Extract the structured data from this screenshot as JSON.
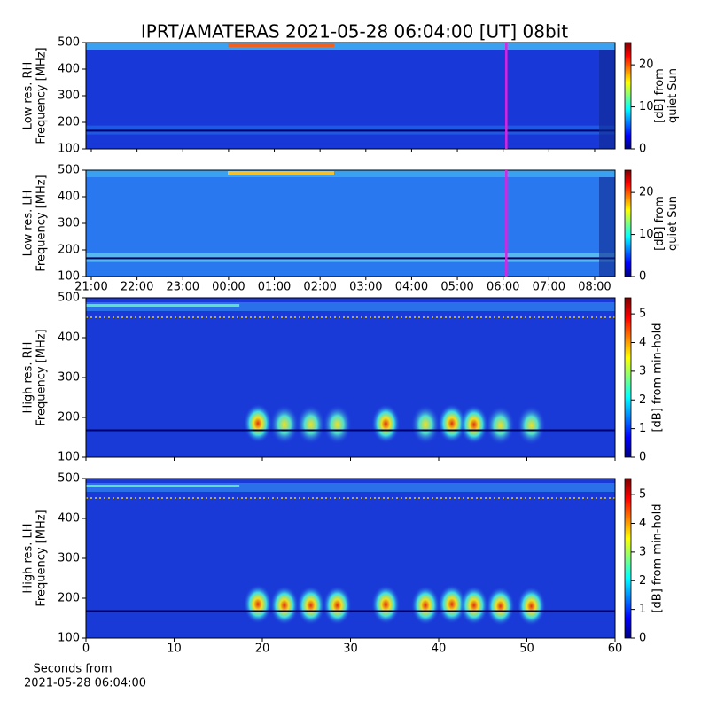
{
  "title": "IPRT/AMATERAS 2021-05-28 06:04:00 [UT]   08bit",
  "chart_data": [
    {
      "type": "heatmap",
      "ylabel": [
        "Low res. RH",
        "Frequency [MHz]"
      ],
      "xlim": [
        20.884,
        32.446
      ],
      "ylim": [
        100,
        500
      ],
      "yticks": [
        100,
        200,
        300,
        400,
        500
      ],
      "marker": {
        "x": 30.07,
        "color": "#e020e0"
      },
      "colorbar": {
        "label": [
          "[dB] from",
          "quiet Sun"
        ],
        "clim": [
          0,
          25.3
        ],
        "ticks": [
          0,
          10,
          20
        ],
        "colormap": "jet"
      }
    },
    {
      "type": "heatmap",
      "ylabel": [
        "Low res. LH",
        "Frequency [MHz]"
      ],
      "xlim": [
        20.884,
        32.446
      ],
      "ylim": [
        100,
        500
      ],
      "yticks": [
        100,
        200,
        300,
        400,
        500
      ],
      "xticks": [
        {
          "value": 21,
          "label": "21:00"
        },
        {
          "value": 22,
          "label": "22:00"
        },
        {
          "value": 23,
          "label": "23:00"
        },
        {
          "value": 24,
          "label": "00:00"
        },
        {
          "value": 25,
          "label": "01:00"
        },
        {
          "value": 26,
          "label": "02:00"
        },
        {
          "value": 27,
          "label": "03:00"
        },
        {
          "value": 28,
          "label": "04:00"
        },
        {
          "value": 29,
          "label": "05:00"
        },
        {
          "value": 30,
          "label": "06:00"
        },
        {
          "value": 31,
          "label": "07:00"
        },
        {
          "value": 32,
          "label": "08:00"
        }
      ],
      "marker": {
        "x": 30.07,
        "color": "#e020e0"
      },
      "colorbar": {
        "label": [
          "[dB] from",
          "quiet Sun"
        ],
        "clim": [
          0,
          25.3
        ],
        "ticks": [
          0,
          10,
          20
        ],
        "colormap": "jet"
      }
    },
    {
      "type": "heatmap",
      "ylabel": [
        "High res. RH",
        "Frequency [MHz]"
      ],
      "xlim": [
        0,
        60
      ],
      "ylim": [
        100,
        500
      ],
      "yticks": [
        100,
        200,
        300,
        400,
        500
      ],
      "colorbar": {
        "label": [
          "[dB] from min-hold"
        ],
        "clim": [
          0,
          5.56
        ],
        "ticks": [
          0,
          1,
          2,
          3,
          4,
          5
        ],
        "colormap": "jet"
      }
    },
    {
      "type": "heatmap",
      "ylabel": [
        "High res. LH",
        "Frequency [MHz]"
      ],
      "xlabel": [
        "Seconds from",
        "2021-05-28 06:04:00"
      ],
      "xlim": [
        0,
        60
      ],
      "ylim": [
        100,
        500
      ],
      "yticks": [
        100,
        200,
        300,
        400,
        500
      ],
      "xticks": [
        0,
        10,
        20,
        30,
        40,
        50,
        60
      ],
      "colorbar": {
        "label": [
          "[dB] from min-hold"
        ],
        "clim": [
          0,
          5.56
        ],
        "ticks": [
          0,
          1,
          2,
          3,
          4,
          5
        ],
        "colormap": "jet"
      }
    }
  ]
}
